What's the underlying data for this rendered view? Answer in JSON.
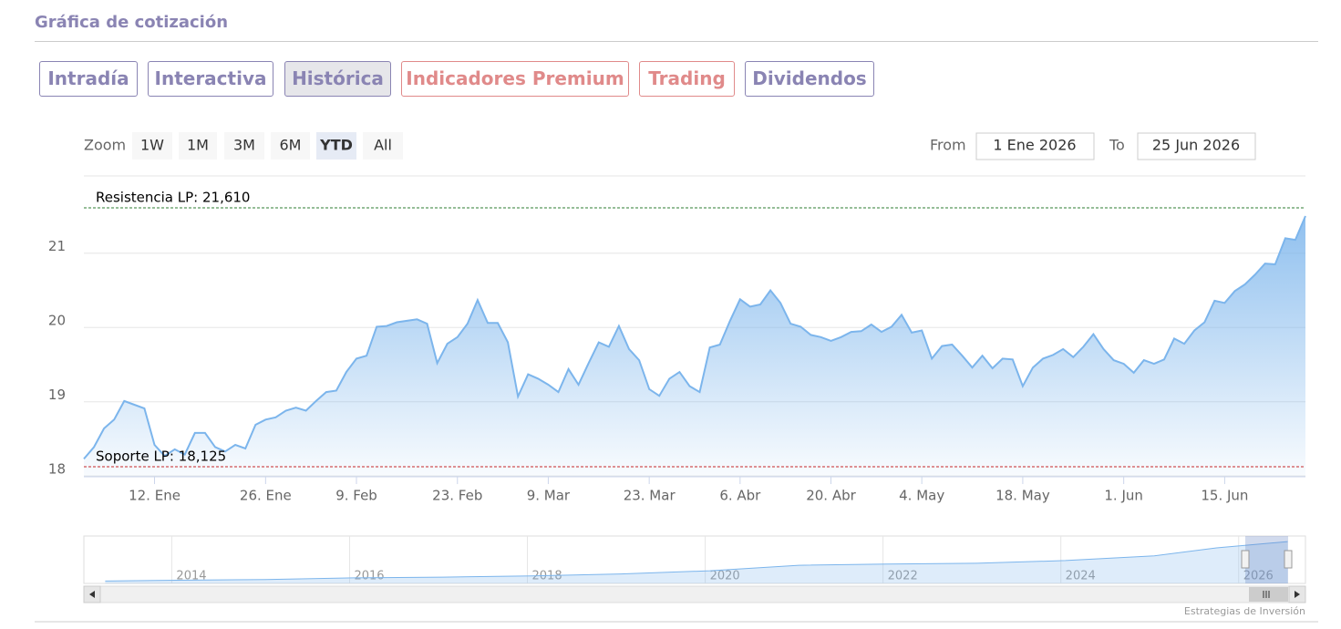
{
  "header": {
    "title": "Gráfica de cotización"
  },
  "tabs": [
    "Intradía",
    "Interactiva",
    "Histórica",
    "Indicadores Premium",
    "Trading",
    "Dividendos"
  ],
  "zoom": {
    "label": "Zoom",
    "buttons": [
      "1W",
      "1M",
      "3M",
      "6M",
      "YTD",
      "All"
    ]
  },
  "range": {
    "from_label": "From",
    "from": "1 Ene 2026",
    "to_label": "To",
    "to": "25 Jun 2026"
  },
  "chart_data": {
    "type": "area",
    "color": "#7cb5ec",
    "categories": [
      null,
      null,
      null,
      null,
      null,
      null,
      null,
      "12. Ene",
      null,
      null,
      null,
      null,
      null,
      null,
      null,
      null,
      null,
      null,
      "26. Ene",
      null,
      null,
      null,
      null,
      null,
      null,
      null,
      null,
      "9. Feb",
      null,
      null,
      null,
      null,
      null,
      null,
      null,
      null,
      null,
      "23. Feb",
      null,
      null,
      null,
      null,
      null,
      null,
      null,
      null,
      "9. Mar",
      null,
      null,
      null,
      null,
      null,
      null,
      null,
      null,
      null,
      "23. Mar",
      null,
      null,
      null,
      null,
      null,
      null,
      null,
      null,
      "6. Abr",
      null,
      null,
      null,
      null,
      null,
      null,
      null,
      null,
      "20. Abr",
      null,
      null,
      null,
      null,
      null,
      null,
      null,
      null,
      "4. May",
      null,
      null,
      null,
      null,
      null,
      null,
      null,
      null,
      null,
      "18. May",
      null,
      null,
      null,
      null,
      null,
      null,
      null,
      null,
      null,
      "1. Jun",
      null,
      null,
      null,
      null,
      null,
      null,
      null,
      null,
      null,
      "15. Jun",
      null,
      null,
      null,
      null,
      null,
      null,
      null,
      null
    ],
    "values": [
      18.23,
      18.39,
      18.64,
      18.76,
      19.01,
      18.96,
      18.91,
      18.42,
      18.27,
      18.36,
      18.29,
      18.58,
      18.58,
      18.39,
      18.33,
      18.42,
      18.37,
      18.69,
      18.76,
      18.79,
      18.88,
      18.92,
      18.88,
      19.01,
      19.13,
      19.15,
      19.4,
      19.58,
      19.62,
      20.01,
      20.02,
      20.07,
      20.09,
      20.11,
      20.05,
      19.52,
      19.78,
      19.87,
      20.05,
      20.37,
      20.06,
      20.06,
      19.8,
      19.07,
      19.37,
      19.31,
      19.23,
      19.13,
      19.44,
      19.23,
      19.52,
      19.8,
      19.74,
      20.02,
      19.71,
      19.56,
      19.17,
      19.08,
      19.31,
      19.4,
      19.21,
      19.13,
      19.73,
      19.77,
      20.09,
      20.38,
      20.28,
      20.31,
      20.5,
      20.33,
      20.05,
      20.01,
      19.9,
      19.87,
      19.82,
      19.87,
      19.94,
      19.95,
      20.04,
      19.94,
      20.01,
      20.17,
      19.93,
      19.96,
      19.58,
      19.75,
      19.77,
      19.62,
      19.46,
      19.62,
      19.45,
      19.58,
      19.57,
      19.21,
      19.46,
      19.58,
      19.63,
      19.71,
      19.6,
      19.74,
      19.91,
      19.71,
      19.56,
      19.51,
      19.39,
      19.56,
      19.51,
      19.57,
      19.85,
      19.78,
      19.96,
      20.07,
      20.36,
      20.33,
      20.49,
      20.58,
      20.71,
      20.86,
      20.85,
      21.2,
      21.18,
      21.5
    ],
    "ylim": [
      17.99,
      22.04
    ],
    "yticks": [
      18,
      19,
      20,
      21
    ],
    "grid": true,
    "reference_lines": [
      {
        "label": "Resistencia LP: 21,610",
        "value": 21.61,
        "color": "#2e7d32"
      },
      {
        "label": "Soporte LP: 18,125",
        "value": 18.125,
        "color": "#c62828"
      }
    ]
  },
  "navigator": {
    "x": [
      2013.2,
      2014,
      2015,
      2016,
      2017,
      2018,
      2019,
      2020,
      2021,
      2022,
      2023,
      2024,
      2025,
      2025.7,
      2026.5
    ],
    "values": [
      10.6,
      10.8,
      11.0,
      11.4,
      11.6,
      11.9,
      12.4,
      13.2,
      14.6,
      14.9,
      15.1,
      15.8,
      17.0,
      19.0,
      20.6
    ],
    "xlim": [
      2012.96,
      2026.7
    ],
    "xticks": [
      2014,
      2016,
      2018,
      2020,
      2022,
      2024,
      2026
    ],
    "ylim": [
      10,
      22
    ]
  },
  "credit": "Estrategias de Inversión"
}
